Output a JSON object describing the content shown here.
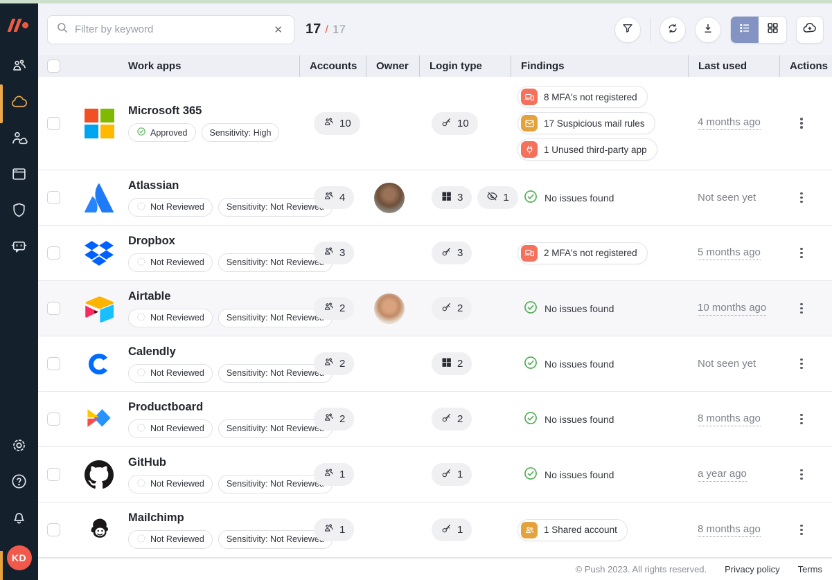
{
  "colors": {
    "accent_orange": "#ED5C40",
    "active_amber": "#ECA94B",
    "coral_finding": "#F4715B",
    "amber_finding": "#E2A33D",
    "green_ok": "#4CAF50",
    "list_active": "#8494C2"
  },
  "sidebar": {
    "logo": "push-logo",
    "items": [
      {
        "icon": "team",
        "active": false
      },
      {
        "icon": "cloud",
        "active": true
      },
      {
        "icon": "person-cloud",
        "active": false
      },
      {
        "icon": "browser",
        "active": false
      },
      {
        "icon": "shield",
        "active": false
      },
      {
        "icon": "bot",
        "active": false
      }
    ],
    "bottom_items": [
      {
        "icon": "gear"
      },
      {
        "icon": "help"
      },
      {
        "icon": "bell"
      }
    ],
    "avatar_initials": "KD"
  },
  "topbar": {
    "search": {
      "placeholder": "Filter by keyword",
      "value": "",
      "clear_glyph": "✕"
    },
    "counter": {
      "current": "17",
      "separator": "/",
      "total": "17"
    }
  },
  "table": {
    "columns": [
      "Work apps",
      "Accounts",
      "Owner",
      "Login type",
      "Findings",
      "Last used",
      "Actions"
    ]
  },
  "rows": [
    {
      "name": "Microsoft 365",
      "logo": "microsoft",
      "badges": [
        {
          "icon": "check-circle",
          "label": "Approved"
        },
        {
          "label": "Sensitivity: High"
        }
      ],
      "accounts": "10",
      "owner": null,
      "login": [
        {
          "icon": "key",
          "count": "10"
        }
      ],
      "findings": {
        "type": "issues",
        "items": [
          {
            "icon": "mfa-device",
            "color": "#F4715B",
            "label": "8 MFA's not registered"
          },
          {
            "icon": "mail",
            "color": "#E2A33D",
            "label": "17 Suspicious mail rules"
          },
          {
            "icon": "plug",
            "color": "#F4715B",
            "label": "1 Unused third-party app"
          }
        ]
      },
      "last_used": {
        "text": "4 months ago",
        "underline": true
      },
      "tall": true
    },
    {
      "name": "Atlassian",
      "logo": "atlassian",
      "badges": [
        {
          "icon": "dashed-circle",
          "label": "Not Reviewed"
        },
        {
          "label": "Sensitivity: Not Reviewed"
        }
      ],
      "accounts": "4",
      "owner": "avatar-1",
      "login": [
        {
          "icon": "windows",
          "count": "3"
        },
        {
          "icon": "eye-off",
          "count": "1"
        }
      ],
      "findings": {
        "type": "none",
        "label": "No issues found"
      },
      "last_used": {
        "text": "Not seen yet",
        "underline": false
      }
    },
    {
      "name": "Dropbox",
      "logo": "dropbox",
      "badges": [
        {
          "icon": "dashed-circle",
          "label": "Not Reviewed"
        },
        {
          "label": "Sensitivity: Not Reviewed"
        }
      ],
      "accounts": "3",
      "owner": null,
      "login": [
        {
          "icon": "key",
          "count": "3"
        }
      ],
      "findings": {
        "type": "issues",
        "items": [
          {
            "icon": "mfa-device",
            "color": "#F4715B",
            "label": "2 MFA's not registered"
          }
        ]
      },
      "last_used": {
        "text": "5 months ago",
        "underline": true
      }
    },
    {
      "name": "Airtable",
      "logo": "airtable",
      "badges": [
        {
          "icon": "dashed-circle",
          "label": "Not Reviewed"
        },
        {
          "label": "Sensitivity: Not Reviewed"
        }
      ],
      "accounts": "2",
      "owner": "avatar-2",
      "login": [
        {
          "icon": "key",
          "count": "2"
        }
      ],
      "findings": {
        "type": "none",
        "label": "No issues found"
      },
      "last_used": {
        "text": "10 months ago",
        "underline": true
      },
      "highlight": true
    },
    {
      "name": "Calendly",
      "logo": "calendly",
      "badges": [
        {
          "icon": "dashed-circle",
          "label": "Not Reviewed"
        },
        {
          "label": "Sensitivity: Not Reviewed"
        }
      ],
      "accounts": "2",
      "owner": null,
      "login": [
        {
          "icon": "windows",
          "count": "2"
        }
      ],
      "findings": {
        "type": "none",
        "label": "No issues found"
      },
      "last_used": {
        "text": "Not seen yet",
        "underline": false
      }
    },
    {
      "name": "Productboard",
      "logo": "productboard",
      "badges": [
        {
          "icon": "dashed-circle",
          "label": "Not Reviewed"
        },
        {
          "label": "Sensitivity: Not Reviewed"
        }
      ],
      "accounts": "2",
      "owner": null,
      "login": [
        {
          "icon": "key",
          "count": "2"
        }
      ],
      "findings": {
        "type": "none",
        "label": "No issues found"
      },
      "last_used": {
        "text": "8 months ago",
        "underline": true
      }
    },
    {
      "name": "GitHub",
      "logo": "github",
      "badges": [
        {
          "icon": "dashed-circle",
          "label": "Not Reviewed"
        },
        {
          "label": "Sensitivity: Not Reviewed"
        }
      ],
      "accounts": "1",
      "owner": null,
      "login": [
        {
          "icon": "key",
          "count": "1"
        }
      ],
      "findings": {
        "type": "none",
        "label": "No issues found"
      },
      "last_used": {
        "text": "a year ago",
        "underline": true
      }
    },
    {
      "name": "Mailchimp",
      "logo": "mailchimp",
      "badges": [
        {
          "icon": "dashed-circle",
          "label": "Not Reviewed"
        },
        {
          "label": "Sensitivity: Not Reviewed"
        }
      ],
      "accounts": "1",
      "owner": null,
      "login": [
        {
          "icon": "key",
          "count": "1"
        }
      ],
      "findings": {
        "type": "issues",
        "items": [
          {
            "icon": "shared-account",
            "color": "#E2A33D",
            "label": "1 Shared account"
          }
        ]
      },
      "last_used": {
        "text": "8 months ago",
        "underline": true
      }
    }
  ],
  "footer": {
    "copyright": "© Push 2023. All rights reserved.",
    "links": [
      "Privacy policy",
      "Terms"
    ]
  }
}
